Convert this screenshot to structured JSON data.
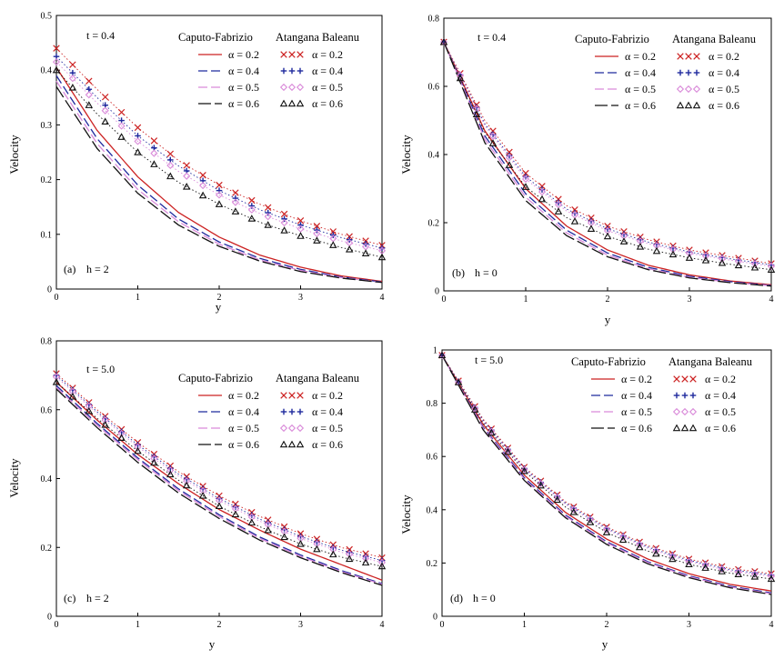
{
  "figure_note": "Velocity profiles: Caputo-Fabrizio (curves) vs Atangana Baleanu (markers)",
  "chart_data": [
    {
      "type": "line",
      "panel_label": "(a)",
      "h_label": "h  =  2",
      "time_label": "t = 0.4",
      "xlabel": "y",
      "ylabel": "Velocity",
      "xlim": [
        0,
        4
      ],
      "ylim": [
        0,
        0.5
      ],
      "xticks": [
        "0",
        "1",
        "2",
        "3",
        "4"
      ],
      "yticks": [
        "0",
        "0.1",
        "0.2",
        "0.3",
        "0.4",
        "0.5"
      ],
      "x": [
        0,
        0.5,
        1,
        1.5,
        2,
        2.5,
        3,
        3.5,
        4
      ],
      "legend": {
        "cf_title": "Caputo-Fabrizio",
        "ab_title": "Atangana Baleanu"
      },
      "series": [
        {
          "name": "α = 0.2",
          "method": "Caputo-Fabrizio",
          "color": "#cc2222",
          "dash": "",
          "values": [
            0.405,
            0.29,
            0.205,
            0.14,
            0.095,
            0.062,
            0.04,
            0.024,
            0.014
          ]
        },
        {
          "name": "α = 0.4",
          "method": "Caputo-Fabrizio",
          "color": "#1f2a9e",
          "dash": "10 4",
          "values": [
            0.39,
            0.275,
            0.19,
            0.128,
            0.086,
            0.056,
            0.036,
            0.022,
            0.013
          ]
        },
        {
          "name": "α = 0.5",
          "method": "Caputo-Fabrizio",
          "color": "#d98ad9",
          "dash": "10 4",
          "values": [
            0.38,
            0.266,
            0.182,
            0.123,
            0.082,
            0.053,
            0.034,
            0.021,
            0.012
          ]
        },
        {
          "name": "α = 0.6",
          "method": "Caputo-Fabrizio",
          "color": "#111111",
          "dash": "14 4",
          "values": [
            0.37,
            0.257,
            0.175,
            0.117,
            0.078,
            0.051,
            0.032,
            0.02,
            0.012
          ]
        },
        {
          "name": "α = 0.2",
          "method": "Atangana Baleanu",
          "color": "#cc2222",
          "marker": "×",
          "values": [
            0.44,
            0.365,
            0.295,
            0.235,
            0.19,
            0.155,
            0.125,
            0.1,
            0.08
          ]
        },
        {
          "name": "α = 0.4",
          "method": "Atangana Baleanu",
          "color": "#1f2a9e",
          "marker": "+",
          "values": [
            0.425,
            0.35,
            0.28,
            0.225,
            0.18,
            0.145,
            0.117,
            0.094,
            0.075
          ]
        },
        {
          "name": "α = 0.5",
          "method": "Atangana Baleanu",
          "color": "#d98ad9",
          "marker": "◇",
          "values": [
            0.415,
            0.34,
            0.27,
            0.215,
            0.172,
            0.138,
            0.11,
            0.088,
            0.07
          ]
        },
        {
          "name": "α = 0.6",
          "method": "Atangana Baleanu",
          "color": "#111111",
          "marker": "△",
          "values": [
            0.4,
            0.32,
            0.25,
            0.195,
            0.155,
            0.122,
            0.097,
            0.076,
            0.058
          ]
        }
      ]
    },
    {
      "type": "line",
      "panel_label": "(b)",
      "h_label": "h  =  0",
      "time_label": "t = 0.4",
      "xlabel": "y",
      "ylabel": "Velocity",
      "xlim": [
        0,
        4
      ],
      "ylim": [
        0,
        0.8
      ],
      "xticks": [
        "0",
        "1",
        "2",
        "3",
        "4"
      ],
      "yticks": [
        "0",
        "0.2",
        "0.4",
        "0.6",
        "0.8"
      ],
      "x": [
        0,
        0.5,
        1,
        1.5,
        2,
        2.5,
        3,
        3.5,
        4
      ],
      "legend": {
        "cf_title": "Caputo-Fabrizio",
        "ab_title": "Atangana Baleanu"
      },
      "series": [
        {
          "name": "α = 0.2",
          "method": "Caputo-Fabrizio",
          "color": "#cc2222",
          "dash": "",
          "values": [
            0.73,
            0.47,
            0.3,
            0.19,
            0.12,
            0.075,
            0.047,
            0.029,
            0.018
          ]
        },
        {
          "name": "α = 0.4",
          "method": "Caputo-Fabrizio",
          "color": "#1f2a9e",
          "dash": "10 4",
          "values": [
            0.73,
            0.455,
            0.285,
            0.178,
            0.111,
            0.069,
            0.043,
            0.027,
            0.016
          ]
        },
        {
          "name": "α = 0.5",
          "method": "Caputo-Fabrizio",
          "color": "#d98ad9",
          "dash": "10 4",
          "values": [
            0.73,
            0.445,
            0.275,
            0.17,
            0.105,
            0.065,
            0.04,
            0.025,
            0.015
          ]
        },
        {
          "name": "α = 0.6",
          "method": "Caputo-Fabrizio",
          "color": "#111111",
          "dash": "14 4",
          "values": [
            0.73,
            0.435,
            0.265,
            0.162,
            0.1,
            0.062,
            0.038,
            0.024,
            0.014
          ]
        },
        {
          "name": "α = 0.2",
          "method": "Atangana Baleanu",
          "color": "#cc2222",
          "marker": "×",
          "values": [
            0.73,
            0.5,
            0.345,
            0.25,
            0.19,
            0.15,
            0.12,
            0.1,
            0.08
          ]
        },
        {
          "name": "α = 0.4",
          "method": "Atangana Baleanu",
          "color": "#1f2a9e",
          "marker": "+",
          "values": [
            0.73,
            0.49,
            0.335,
            0.24,
            0.182,
            0.143,
            0.114,
            0.094,
            0.076
          ]
        },
        {
          "name": "α = 0.5",
          "method": "Atangana Baleanu",
          "color": "#d98ad9",
          "marker": "◇",
          "values": [
            0.73,
            0.485,
            0.328,
            0.234,
            0.176,
            0.138,
            0.11,
            0.09,
            0.072
          ]
        },
        {
          "name": "α = 0.6",
          "method": "Atangana Baleanu",
          "color": "#111111",
          "marker": "△",
          "values": [
            0.73,
            0.465,
            0.305,
            0.215,
            0.16,
            0.122,
            0.097,
            0.078,
            0.062
          ]
        }
      ]
    },
    {
      "type": "line",
      "panel_label": "(c)",
      "h_label": "h  =  2",
      "time_label": "t = 5.0",
      "xlabel": "y",
      "ylabel": "Velocity",
      "xlim": [
        0,
        4
      ],
      "ylim": [
        0,
        0.8
      ],
      "xticks": [
        "0",
        "1",
        "2",
        "3",
        "4"
      ],
      "yticks": [
        "0",
        "0.2",
        "0.4",
        "0.6",
        "0.8"
      ],
      "x": [
        0,
        0.5,
        1,
        1.5,
        2,
        2.5,
        3,
        3.5,
        4
      ],
      "legend": {
        "cf_title": "Caputo-Fabrizio",
        "ab_title": "Atangana Baleanu"
      },
      "series": [
        {
          "name": "α = 0.2",
          "method": "Caputo-Fabrizio",
          "color": "#cc2222",
          "dash": "",
          "values": [
            0.68,
            0.57,
            0.47,
            0.385,
            0.31,
            0.25,
            0.195,
            0.15,
            0.105
          ]
        },
        {
          "name": "α = 0.4",
          "method": "Caputo-Fabrizio",
          "color": "#1f2a9e",
          "dash": "10 4",
          "values": [
            0.67,
            0.56,
            0.46,
            0.37,
            0.295,
            0.23,
            0.178,
            0.133,
            0.095
          ]
        },
        {
          "name": "α = 0.5",
          "method": "Caputo-Fabrizio",
          "color": "#d98ad9",
          "dash": "10 4",
          "values": [
            0.665,
            0.555,
            0.455,
            0.365,
            0.29,
            0.226,
            0.174,
            0.13,
            0.093
          ]
        },
        {
          "name": "α = 0.6",
          "method": "Caputo-Fabrizio",
          "color": "#111111",
          "dash": "14 4",
          "values": [
            0.66,
            0.548,
            0.447,
            0.358,
            0.284,
            0.221,
            0.17,
            0.127,
            0.09
          ]
        },
        {
          "name": "α = 0.2",
          "method": "Atangana Baleanu",
          "color": "#cc2222",
          "marker": "×",
          "values": [
            0.705,
            0.6,
            0.505,
            0.42,
            0.35,
            0.29,
            0.24,
            0.2,
            0.17
          ]
        },
        {
          "name": "α = 0.4",
          "method": "Atangana Baleanu",
          "color": "#1f2a9e",
          "marker": "+",
          "values": [
            0.7,
            0.594,
            0.498,
            0.413,
            0.342,
            0.282,
            0.232,
            0.192,
            0.162
          ]
        },
        {
          "name": "α = 0.5",
          "method": "Atangana Baleanu",
          "color": "#d98ad9",
          "marker": "◇",
          "values": [
            0.695,
            0.589,
            0.492,
            0.407,
            0.336,
            0.276,
            0.226,
            0.186,
            0.156
          ]
        },
        {
          "name": "α = 0.6",
          "method": "Atangana Baleanu",
          "color": "#111111",
          "marker": "△",
          "values": [
            0.68,
            0.575,
            0.48,
            0.395,
            0.32,
            0.26,
            0.21,
            0.172,
            0.145
          ]
        }
      ]
    },
    {
      "type": "line",
      "panel_label": "(d)",
      "h_label": "h  =  0",
      "time_label": "t = 5.0",
      "xlabel": "y",
      "ylabel": "Velocity",
      "xlim": [
        0,
        4
      ],
      "ylim": [
        0,
        1
      ],
      "xticks": [
        "0",
        "1",
        "2",
        "3",
        "4"
      ],
      "yticks": [
        "0",
        "0.2",
        "0.4",
        "0.6",
        "0.8",
        "1"
      ],
      "x": [
        0,
        0.5,
        1,
        1.5,
        2,
        2.5,
        3,
        3.5,
        4
      ],
      "legend": {
        "cf_title": "Caputo-Fabrizio",
        "ab_title": "Atangana Baleanu"
      },
      "series": [
        {
          "name": "α = 0.2",
          "method": "Caputo-Fabrizio",
          "color": "#cc2222",
          "dash": "",
          "values": [
            0.98,
            0.72,
            0.53,
            0.39,
            0.29,
            0.215,
            0.16,
            0.12,
            0.095
          ]
        },
        {
          "name": "α = 0.4",
          "method": "Caputo-Fabrizio",
          "color": "#1f2a9e",
          "dash": "10 4",
          "values": [
            0.98,
            0.71,
            0.52,
            0.38,
            0.28,
            0.205,
            0.152,
            0.113,
            0.088
          ]
        },
        {
          "name": "α = 0.5",
          "method": "Caputo-Fabrizio",
          "color": "#d98ad9",
          "dash": "10 4",
          "values": [
            0.98,
            0.706,
            0.515,
            0.376,
            0.276,
            0.202,
            0.149,
            0.11,
            0.085
          ]
        },
        {
          "name": "α = 0.6",
          "method": "Caputo-Fabrizio",
          "color": "#111111",
          "dash": "14 4",
          "values": [
            0.98,
            0.7,
            0.51,
            0.37,
            0.27,
            0.197,
            0.145,
            0.107,
            0.082
          ]
        },
        {
          "name": "α = 0.2",
          "method": "Atangana Baleanu",
          "color": "#cc2222",
          "marker": "×",
          "values": [
            0.98,
            0.74,
            0.56,
            0.43,
            0.335,
            0.265,
            0.215,
            0.18,
            0.16
          ]
        },
        {
          "name": "α = 0.4",
          "method": "Atangana Baleanu",
          "color": "#1f2a9e",
          "marker": "+",
          "values": [
            0.98,
            0.735,
            0.555,
            0.425,
            0.33,
            0.26,
            0.21,
            0.175,
            0.155
          ]
        },
        {
          "name": "α = 0.5",
          "method": "Atangana Baleanu",
          "color": "#d98ad9",
          "marker": "◇",
          "values": [
            0.98,
            0.73,
            0.55,
            0.42,
            0.325,
            0.255,
            0.205,
            0.17,
            0.15
          ]
        },
        {
          "name": "α = 0.6",
          "method": "Atangana Baleanu",
          "color": "#111111",
          "marker": "△",
          "values": [
            0.98,
            0.725,
            0.545,
            0.41,
            0.315,
            0.245,
            0.195,
            0.162,
            0.14
          ]
        }
      ]
    }
  ]
}
